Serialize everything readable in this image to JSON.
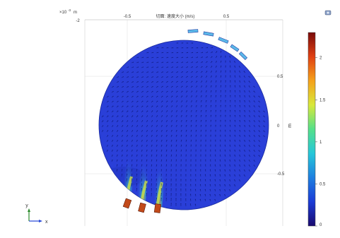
{
  "chart_data": {
    "type": "heatmap",
    "title": "切面: 速度大小 (m/s)",
    "axis_exponent": {
      "base": "×10",
      "exp": "-3",
      "unit": "m"
    },
    "x_ticks": [
      "-2",
      "-0.5",
      "0.5"
    ],
    "y_ticks": [
      "0.5",
      "0",
      "-0.5"
    ],
    "y_unit": "m",
    "colorbar": {
      "min": 0,
      "max": 2.3,
      "ticks": [
        0,
        0.5,
        1,
        1.5,
        2
      ],
      "tick_labels": [
        "0",
        "0.5",
        "1",
        "1.5",
        "2"
      ],
      "colors": [
        "#1a0a6e",
        "#1b3bd6",
        "#1e7fe0",
        "#25c7d9",
        "#54e08a",
        "#d8e83a",
        "#f5a21a",
        "#e04012",
        "#7a0a0a"
      ]
    },
    "triad": {
      "y_label": "y",
      "x_label": "x"
    },
    "background_color": "#2a3fd8",
    "vector_color": "#0c1670"
  }
}
